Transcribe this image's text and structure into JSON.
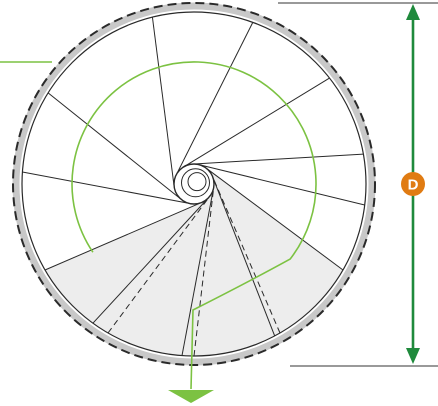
{
  "colors": {
    "outline": "#2a2a2a",
    "rim": "#c8c8c8",
    "landing_fill": "#ededed",
    "walkline": "#7cc242",
    "dimension": "#1f8a3c",
    "badge": "#e07b12",
    "badge_text": "#ffffff",
    "extension_line": "#333333"
  },
  "dimension": {
    "label": "D",
    "icon": "double-arrow-vertical-icon"
  },
  "walkline": {
    "icon": "arrow-down-triangle-icon",
    "direction": "down"
  },
  "stair": {
    "type": "spiral",
    "tread_count": 12,
    "landing_segments": 3
  }
}
